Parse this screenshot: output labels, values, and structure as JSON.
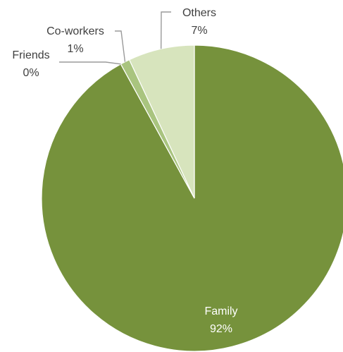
{
  "chart_data": {
    "type": "pie",
    "start_angle_deg": 0,
    "direction": "clockwise",
    "legend": "none",
    "slices": [
      {
        "label": "Family",
        "value": 92,
        "value_label": "92%",
        "color": "#76923c"
      },
      {
        "label": "Friends",
        "value": 0,
        "value_label": "0%",
        "color": "#7f9c46"
      },
      {
        "label": "Co-workers",
        "value": 1,
        "value_label": "1%",
        "color": "#a9c47f"
      },
      {
        "label": "Others",
        "value": 7,
        "value_label": "7%",
        "color": "#d7e4bd"
      }
    ]
  }
}
